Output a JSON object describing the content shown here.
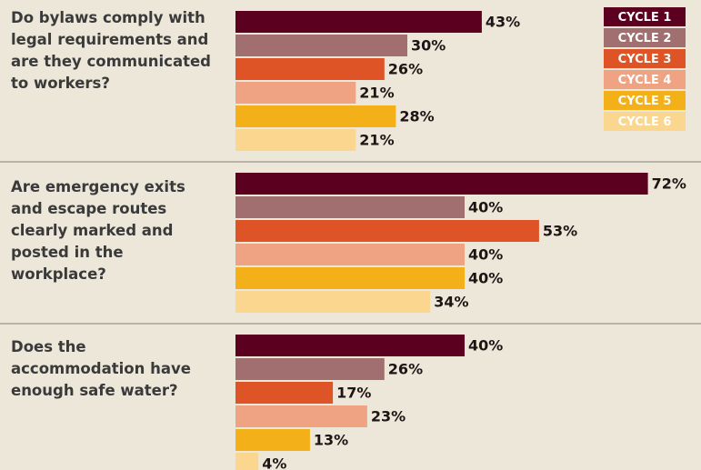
{
  "chart_data": {
    "type": "bar",
    "categories": [
      "Do bylaws comply with legal requirements and are they communicated to workers?",
      "Are emergency exits and escape routes clearly marked and posted in the workplace?",
      "Does the accommodation have enough safe water?"
    ],
    "series": [
      {
        "name": "CYCLE 1",
        "color": "#5c0020",
        "values": [
          43,
          72,
          40
        ],
        "value_labels": [
          "43%",
          "72%",
          "40%"
        ]
      },
      {
        "name": "CYCLE 2",
        "color": "#a26f70",
        "values": [
          30,
          40,
          26
        ],
        "value_labels": [
          "30%",
          "40%",
          "26%"
        ]
      },
      {
        "name": "CYCLE 3",
        "color": "#de5427",
        "values": [
          26,
          53,
          17
        ],
        "value_labels": [
          "26%",
          "53%",
          "17%"
        ]
      },
      {
        "name": "CYCLE 4",
        "color": "#efa382",
        "values": [
          21,
          40,
          23
        ],
        "value_labels": [
          "21%",
          "40%",
          "23%"
        ]
      },
      {
        "name": "CYCLE 5",
        "color": "#f4b019",
        "values": [
          28,
          40,
          13
        ],
        "value_labels": [
          "28%",
          "40%",
          "13%"
        ]
      },
      {
        "name": "CYCLE 6",
        "color": "#fad68f",
        "values": [
          21,
          34,
          4
        ],
        "value_labels": [
          "21%",
          "34%",
          "4%"
        ]
      }
    ]
  }
}
